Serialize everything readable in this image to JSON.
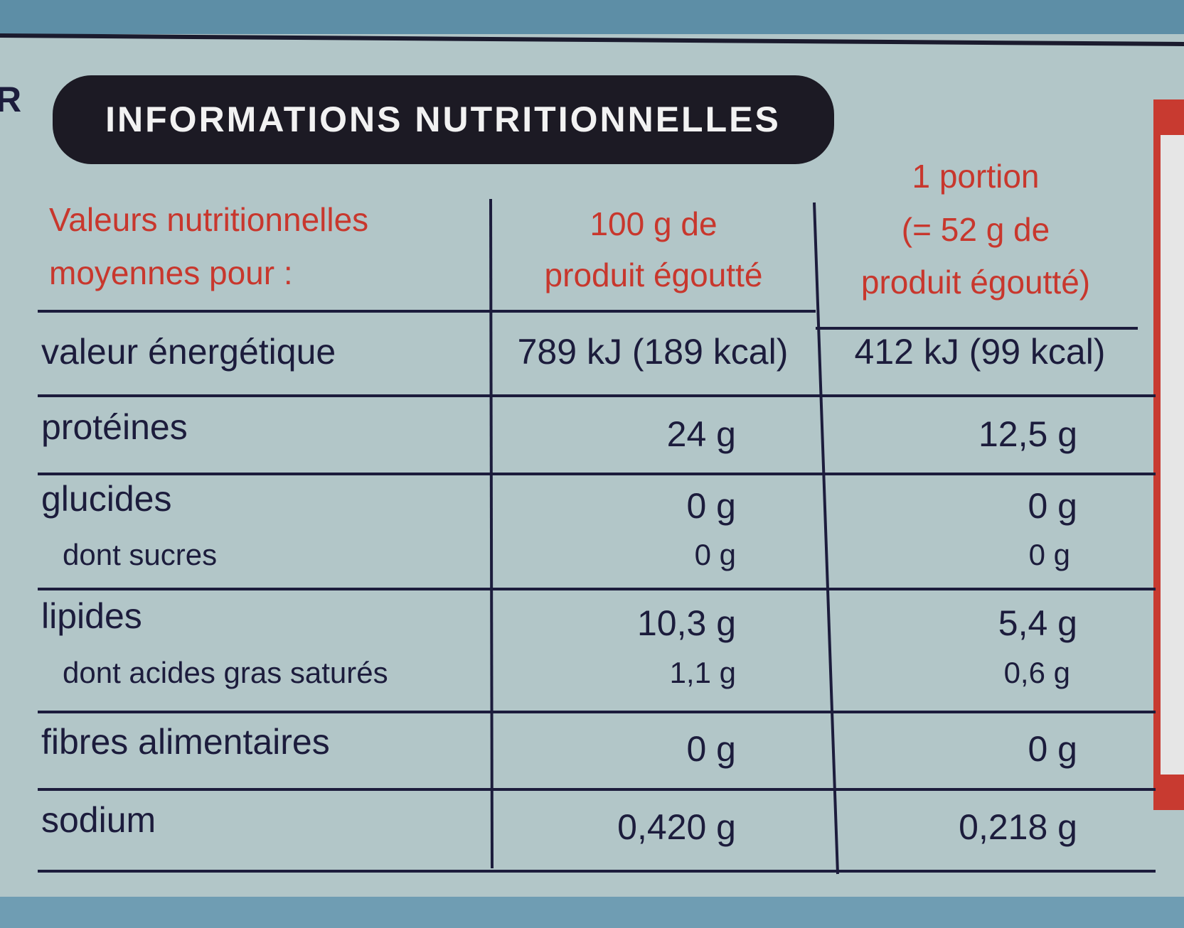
{
  "edge_text": "R",
  "header": {
    "title": "INFORMATIONS NUTRITIONNELLES"
  },
  "table": {
    "columns": [
      [
        "Valeurs nutritionnelles",
        "moyennes pour :"
      ],
      [
        "100 g de",
        "produit égoutté"
      ],
      [
        "1 portion",
        "(= 52 g de",
        "produit égoutté)"
      ]
    ],
    "rows": [
      {
        "label": "valeur énergétique",
        "per_100g": "789 kJ (189 kcal)",
        "per_portion": "412 kJ (99 kcal)"
      },
      {
        "label": "protéines",
        "per_100g": "24 g",
        "per_portion": "12,5 g"
      },
      {
        "label": "glucides",
        "per_100g": "0 g",
        "per_portion": "0 g",
        "sub": {
          "label": "dont sucres",
          "per_100g": "0 g",
          "per_portion": "0 g"
        }
      },
      {
        "label": "lipides",
        "per_100g": "10,3 g",
        "per_portion": "5,4 g",
        "sub": {
          "label": "dont acides gras saturés",
          "per_100g": "1,1 g",
          "per_portion": "0,6 g"
        }
      },
      {
        "label": "fibres alimentaires",
        "per_100g": "0 g",
        "per_portion": "0 g"
      },
      {
        "label": "sodium",
        "per_100g": "0,420 g",
        "per_portion": "0,218 g"
      }
    ]
  }
}
